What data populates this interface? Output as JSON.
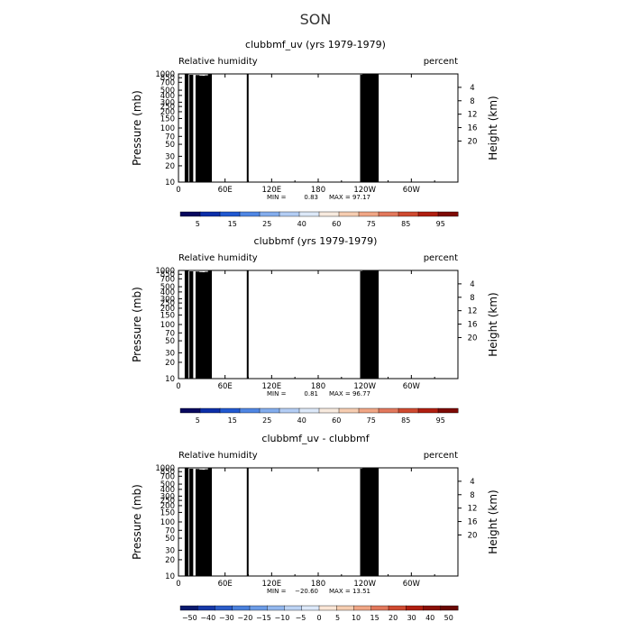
{
  "figure": {
    "title": "SON"
  },
  "chart_data": [
    {
      "type": "heatmap",
      "title": "clubbmf_uv (yrs 1979-1979)",
      "left_label": "Relative humidity",
      "right_label": "percent",
      "ylabel": "Pressure (mb)",
      "ylabel_right": "Height (km)",
      "x_ticks": [
        "0",
        "60E",
        "120E",
        "180",
        "120W",
        "60W"
      ],
      "x_tick_lon": [
        0,
        60,
        120,
        180,
        240,
        300
      ],
      "xlim": [
        0,
        360
      ],
      "y_ticks": [
        "1000",
        "850",
        "700",
        "500",
        "400",
        "300",
        "250",
        "200",
        "150",
        "100",
        "70",
        "50",
        "30",
        "20",
        "10"
      ],
      "y_tick_p": [
        1000,
        850,
        700,
        500,
        400,
        300,
        250,
        200,
        150,
        100,
        70,
        50,
        30,
        20,
        10
      ],
      "ylim": [
        1000,
        10
      ],
      "height_ticks": [
        "4",
        "8",
        "12",
        "16",
        "20"
      ],
      "height_km": [
        4,
        8,
        12,
        16,
        20
      ],
      "min_label": "MIN =",
      "min_value": "0.83",
      "max_label": "MAX =",
      "max_value": "97.17",
      "levels": [
        "5",
        "15",
        "25",
        "40",
        "60",
        "75",
        "85",
        "95"
      ],
      "colorbar_colors": [
        "#08085e",
        "#0c2ea8",
        "#2158d0",
        "#4f86e3",
        "#83aded",
        "#b3cdf4",
        "#dce8f8",
        "#f7eade",
        "#f6cdb1",
        "#f0a685",
        "#e2785c",
        "#cf4a30",
        "#b01e10",
        "#7e0a05"
      ],
      "field": "rh"
    },
    {
      "type": "heatmap",
      "title": "clubbmf (yrs 1979-1979)",
      "left_label": "Relative humidity",
      "right_label": "percent",
      "ylabel": "Pressure (mb)",
      "ylabel_right": "Height (km)",
      "x_ticks": [
        "0",
        "60E",
        "120E",
        "180",
        "120W",
        "60W"
      ],
      "x_tick_lon": [
        0,
        60,
        120,
        180,
        240,
        300
      ],
      "xlim": [
        0,
        360
      ],
      "y_ticks": [
        "1000",
        "850",
        "700",
        "500",
        "400",
        "300",
        "250",
        "200",
        "150",
        "100",
        "70",
        "50",
        "30",
        "20",
        "10"
      ],
      "y_tick_p": [
        1000,
        850,
        700,
        500,
        400,
        300,
        250,
        200,
        150,
        100,
        70,
        50,
        30,
        20,
        10
      ],
      "ylim": [
        1000,
        10
      ],
      "height_ticks": [
        "4",
        "8",
        "12",
        "16",
        "20"
      ],
      "height_km": [
        4,
        8,
        12,
        16,
        20
      ],
      "min_label": "MIN =",
      "min_value": "0.81",
      "max_label": "MAX =",
      "max_value": "96.77",
      "levels": [
        "5",
        "15",
        "25",
        "40",
        "60",
        "75",
        "85",
        "95"
      ],
      "colorbar_colors": [
        "#08085e",
        "#0c2ea8",
        "#2158d0",
        "#4f86e3",
        "#83aded",
        "#b3cdf4",
        "#dce8f8",
        "#f7eade",
        "#f6cdb1",
        "#f0a685",
        "#e2785c",
        "#cf4a30",
        "#b01e10",
        "#7e0a05"
      ],
      "field": "rh"
    },
    {
      "type": "heatmap",
      "title": "clubbmf_uv - clubbmf",
      "left_label": "Relative humidity",
      "right_label": "percent",
      "ylabel": "Pressure (mb)",
      "ylabel_right": "Height (km)",
      "x_ticks": [
        "0",
        "60E",
        "120E",
        "180",
        "120W",
        "60W"
      ],
      "x_tick_lon": [
        0,
        60,
        120,
        180,
        240,
        300
      ],
      "xlim": [
        0,
        360
      ],
      "y_ticks": [
        "1000",
        "850",
        "700",
        "500",
        "400",
        "300",
        "250",
        "200",
        "150",
        "100",
        "70",
        "50",
        "30",
        "20",
        "10"
      ],
      "y_tick_p": [
        1000,
        850,
        700,
        500,
        400,
        300,
        250,
        200,
        150,
        100,
        70,
        50,
        30,
        20,
        10
      ],
      "ylim": [
        1000,
        10
      ],
      "height_ticks": [
        "4",
        "8",
        "12",
        "16",
        "20"
      ],
      "height_km": [
        4,
        8,
        12,
        16,
        20
      ],
      "min_label": "MIN =",
      "min_value": "−20.60",
      "max_label": "MAX =",
      "max_value": "13.51",
      "levels": [
        "−50",
        "−40",
        "−30",
        "−20",
        "−15",
        "−10",
        "−5",
        "0",
        "5",
        "10",
        "15",
        "20",
        "30",
        "40",
        "50"
      ],
      "colorbar_colors": [
        "#0a1a6e",
        "#1638a8",
        "#2b5cc8",
        "#4a80dc",
        "#6c9ce6",
        "#93b8ee",
        "#bcd3f4",
        "#dde9fa",
        "#fbe6d6",
        "#f6cdb1",
        "#f0a685",
        "#e2785c",
        "#cf4a30",
        "#b01e10",
        "#8a0f06",
        "#6a0804"
      ],
      "field": "diff"
    }
  ]
}
